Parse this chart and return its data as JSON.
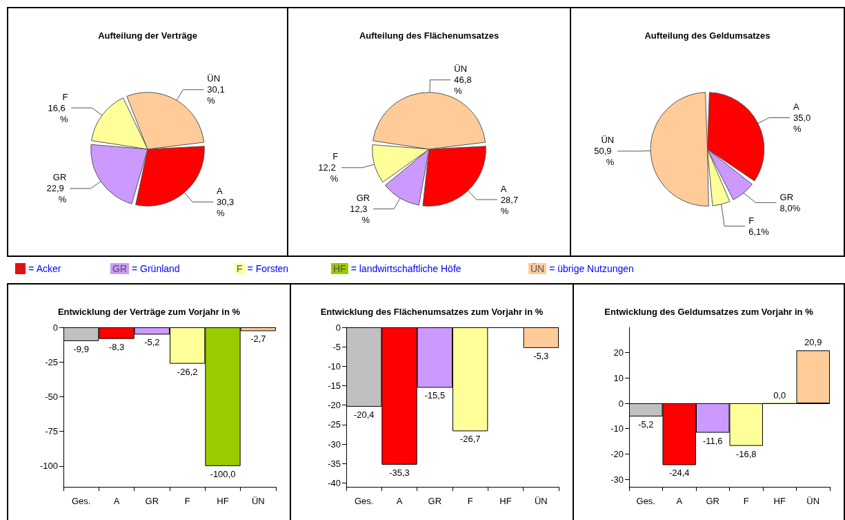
{
  "chart_data": [
    {
      "type": "pie",
      "title": "Aufteilung der Verträge",
      "categories": [
        "A",
        "GR",
        "F",
        "ÜN"
      ],
      "values": [
        30.3,
        22.9,
        16.6,
        30.1
      ],
      "colors": [
        "#ff0000",
        "#cc99ff",
        "#ffff99",
        "#ffcc99"
      ],
      "value_labels": [
        "30,3 %",
        "22,9 %",
        "16,6 %",
        "30,1 %"
      ]
    },
    {
      "type": "pie",
      "title": "Aufteilung des Flächenumsatzes",
      "categories": [
        "A",
        "GR",
        "F",
        "ÜN"
      ],
      "values": [
        28.7,
        12.3,
        12.2,
        46.8
      ],
      "colors": [
        "#ff0000",
        "#cc99ff",
        "#ffff99",
        "#ffcc99"
      ],
      "value_labels": [
        "28,7 %",
        "12,3 %",
        "12,2 %",
        "46,8 %"
      ]
    },
    {
      "type": "pie",
      "title": "Aufteilung des Geldumsatzes",
      "categories": [
        "A",
        "GR",
        "F",
        "ÜN"
      ],
      "values": [
        35.0,
        8.0,
        6.1,
        50.9
      ],
      "colors": [
        "#ff0000",
        "#cc99ff",
        "#ffff99",
        "#ffcc99"
      ],
      "value_labels": [
        "35,0 %",
        "8,0%",
        "6,1%",
        "50,9 %"
      ]
    },
    {
      "type": "other",
      "categories": [
        "A",
        "GR",
        "F",
        "HF",
        "ÜN"
      ],
      "colors": [
        "#ff0000",
        "#cc99ff",
        "#ffff99",
        "#99cc00",
        "#ffcc99"
      ],
      "annotations": [
        "= Acker",
        "= Grünland",
        "= Forsten",
        "= landwirtschaftliche Höfe",
        "= übrige Nutzungen"
      ]
    },
    {
      "type": "bar",
      "title": "Entwicklung der Verträge zum Vorjahr in %",
      "categories": [
        "Ges.",
        "A",
        "GR",
        "F",
        "HF",
        "ÜN"
      ],
      "values": [
        -9.9,
        -8.3,
        -5.2,
        -26.2,
        -100.0,
        -2.7
      ],
      "colors": [
        "#c0c0c0",
        "#ff0000",
        "#cc99ff",
        "#ffff99",
        "#99cc00",
        "#ffcc99"
      ],
      "value_labels": [
        "-9,9",
        "-8,3",
        "-5,2",
        "-26,2",
        "-100,0",
        "-2,7"
      ],
      "ylim": [
        -115,
        0
      ],
      "yticks": [
        -100,
        -75,
        -50,
        -25,
        0
      ],
      "ref_lines": [
        {
          "axis": "y",
          "value": 0
        }
      ]
    },
    {
      "type": "bar",
      "title": "Entwicklung des Flächenumsatzes zum Vorjahr in %",
      "categories": [
        "Ges.",
        "A",
        "GR",
        "F",
        "HF",
        "ÜN"
      ],
      "values": [
        -20.4,
        -35.3,
        -15.5,
        -26.7,
        null,
        -5.3
      ],
      "colors": [
        "#c0c0c0",
        "#ff0000",
        "#cc99ff",
        "#ffff99",
        null,
        "#ffcc99"
      ],
      "value_labels": [
        "-20,4",
        "-35,3",
        "-15,5",
        "-26,7",
        null,
        "-5,3"
      ],
      "ylim": [
        -41,
        0
      ],
      "yticks": [
        -40,
        -35,
        -30,
        -25,
        -20,
        -15,
        -10,
        -5,
        0
      ],
      "ref_lines": [
        {
          "axis": "y",
          "value": 0
        }
      ]
    },
    {
      "type": "bar",
      "title": "Entwicklung des Geldumsatzes zum Vorjahr in %",
      "categories": [
        "Ges.",
        "A",
        "GR",
        "F",
        "HF",
        "ÜN"
      ],
      "values": [
        -5.2,
        -24.4,
        -11.6,
        -16.8,
        0.0,
        20.9
      ],
      "colors": [
        "#c0c0c0",
        "#ff0000",
        "#cc99ff",
        "#ffff99",
        "#99cc00",
        "#ffcc99"
      ],
      "value_labels": [
        "-5,2",
        "-24,4",
        "-11,6",
        "-16,8",
        "0,0",
        "20,9"
      ],
      "ylim": [
        -33,
        30
      ],
      "yticks": [
        -30,
        -20,
        -10,
        0,
        10,
        20
      ],
      "ref_lines": [
        {
          "axis": "y",
          "value": 0
        }
      ]
    }
  ]
}
